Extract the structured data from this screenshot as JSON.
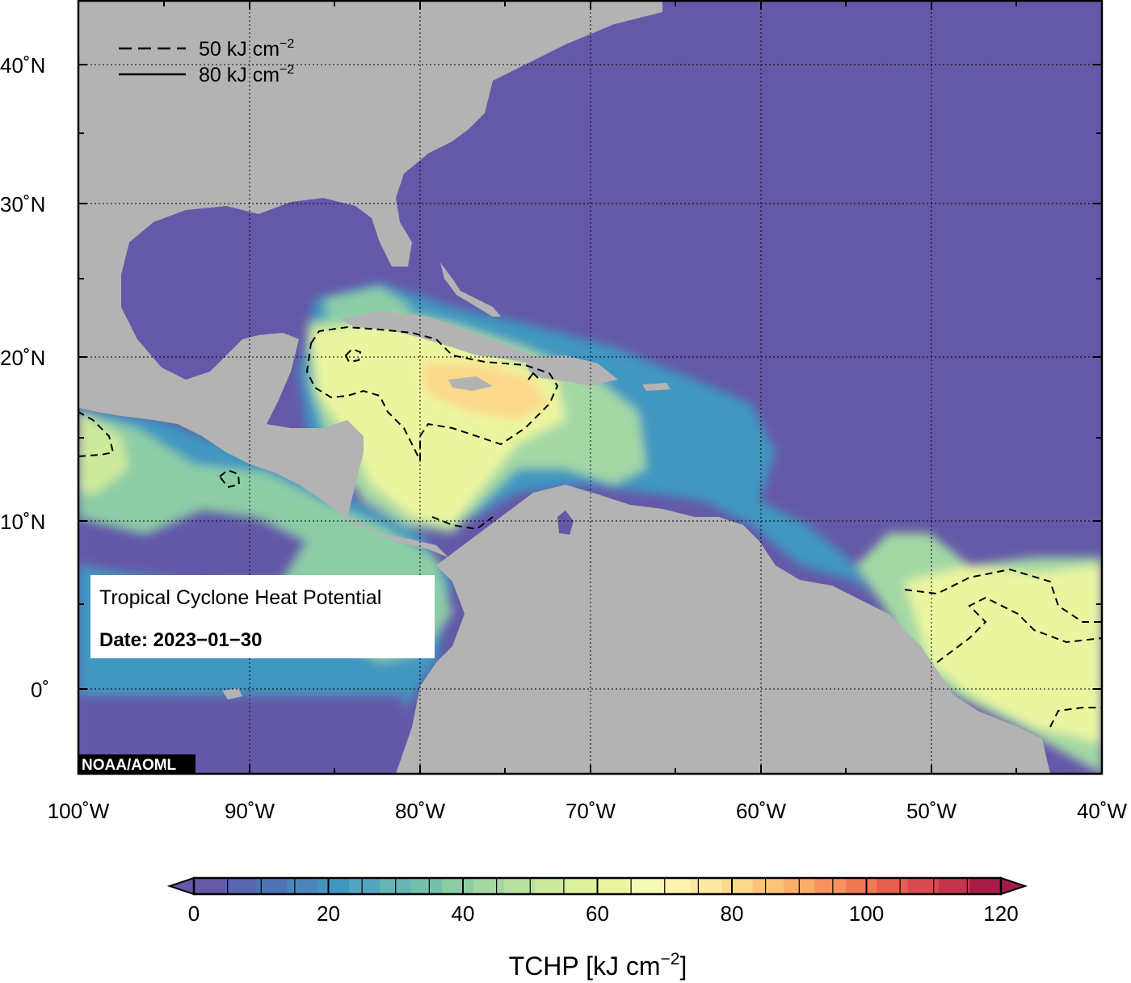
{
  "map": {
    "lat_labels": [
      "40˚N",
      "30˚N",
      "20˚N",
      "10˚N",
      "0˚"
    ],
    "lon_labels": [
      "100˚W",
      "90˚W",
      "80˚W",
      "70˚W",
      "60˚W",
      "50˚W",
      "40˚W"
    ],
    "colors": {
      "ocean_low": "#6459a8",
      "land": "#b3b3b3",
      "frame": "#000000"
    }
  },
  "legend": {
    "dashed_label": "50 kJ cm",
    "solid_label": "80 kJ cm",
    "exponent": "−2"
  },
  "info_box": {
    "title": "Tropical Cyclone Heat Potential",
    "date": "Date: 2023−01−30"
  },
  "credit": "NOAA/AOML",
  "colorbar": {
    "ticks": [
      "0",
      "20",
      "40",
      "60",
      "80",
      "100",
      "120"
    ],
    "title": "TCHP [kJ cm",
    "title_exp": "−2",
    "title_close": "]",
    "min": 0,
    "max": 120,
    "step": 5,
    "colors": [
      "#6459a8",
      "#5a63b0",
      "#4d72b5",
      "#4a86bc",
      "#3f97c0",
      "#52a5be",
      "#66b4b3",
      "#75c0ab",
      "#8dcda6",
      "#a3d8a4",
      "#b8e1a0",
      "#cde99c",
      "#ddf09b",
      "#ebf5a0",
      "#f6f9b4",
      "#fdf4b0",
      "#fde8a0",
      "#fdd98b",
      "#fcc47a",
      "#fbad6c",
      "#f8925f",
      "#f17a55",
      "#e5604f",
      "#d74a4d",
      "#c3344e",
      "#a61b48"
    ]
  }
}
